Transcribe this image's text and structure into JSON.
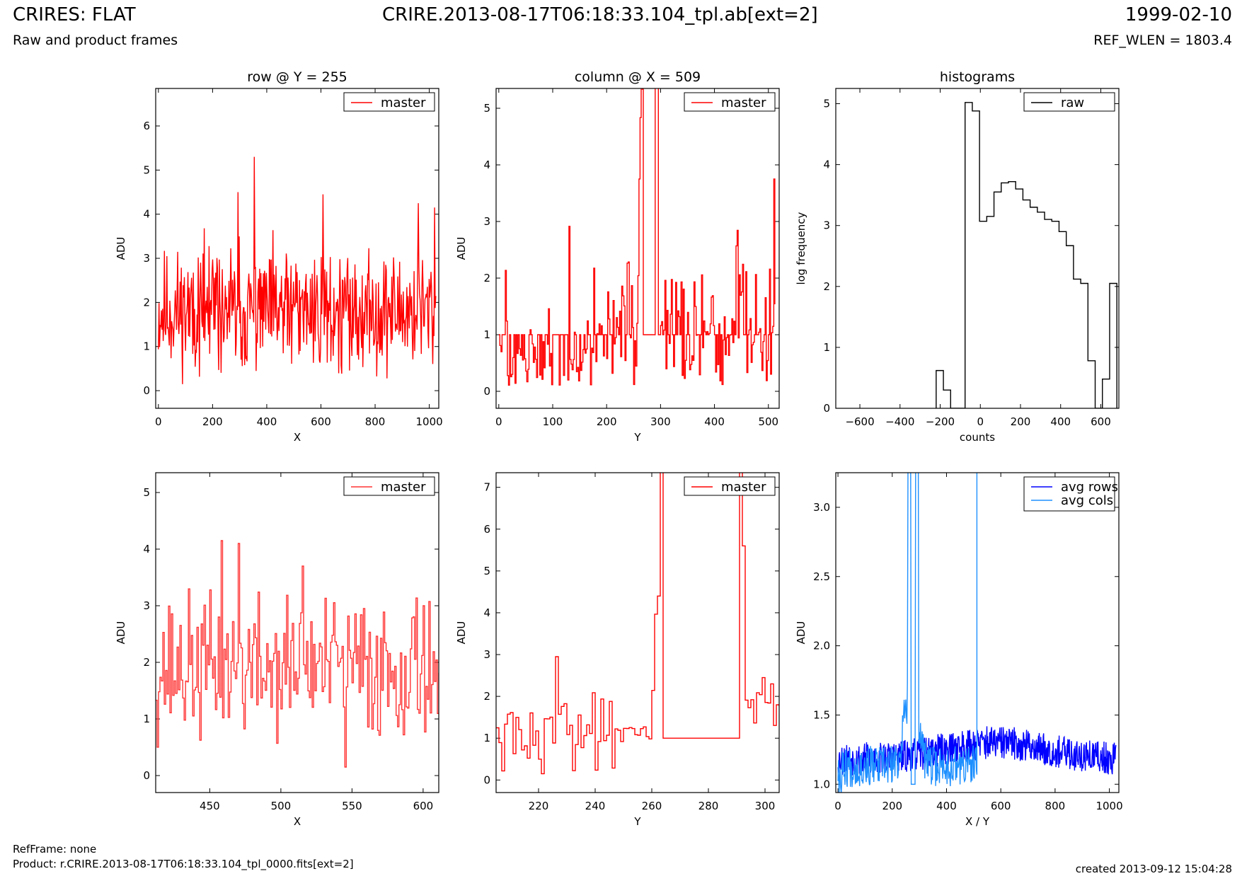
{
  "header": {
    "title_left": "CRIRES: FLAT",
    "subtitle_left": "Raw and product frames",
    "title_center": "CRIRE.2013-08-17T06:18:33.104_tpl.ab[ext=2]",
    "date_right": "1999-02-10",
    "refwlen": "REF_WLEN = 1803.4"
  },
  "footer": {
    "refframe": "RefFrame: none",
    "product": "Product: r.CRIRE.2013-08-17T06:18:33.104_tpl_0000.fits[ext=2]",
    "created": "created 2013-09-12 15:04:28"
  },
  "chart_data": [
    {
      "type": "line",
      "title": "row @ Y = 255",
      "xlabel": "X",
      "ylabel": "ADU",
      "xlim": [
        -10,
        1035
      ],
      "ylim": [
        -0.4,
        6.85
      ],
      "xticks": [
        0,
        200,
        400,
        600,
        800,
        1000
      ],
      "yticks": [
        0,
        1,
        2,
        3,
        4,
        5,
        6
      ],
      "legend": "top-right",
      "step": false,
      "series": [
        {
          "name": "master",
          "color": "#ff0000",
          "gen": {
            "kind": "noise",
            "x0": 0,
            "x1": 1024,
            "n": 460,
            "base": 1.8,
            "amp": 1.05,
            "min": 0.12,
            "seed": 11,
            "spikes": [
              [
                355,
                5.3
              ],
              [
                293,
                4.5
              ],
              [
                607,
                4.45
              ],
              [
                960,
                4.25
              ],
              [
                1020,
                4.15
              ]
            ]
          }
        }
      ]
    },
    {
      "type": "line",
      "title": "column @ X = 509",
      "xlabel": "Y",
      "ylabel": "ADU",
      "xlim": [
        -5,
        520
      ],
      "ylim": [
        -0.3,
        5.35
      ],
      "xticks": [
        0,
        100,
        200,
        300,
        400,
        500
      ],
      "yticks": [
        0,
        1,
        2,
        3,
        4,
        5
      ],
      "legend": "top-right",
      "step": true,
      "series": [
        {
          "name": "master",
          "color": "#ff0000",
          "gen": {
            "kind": "column",
            "seed": 23
          }
        }
      ]
    },
    {
      "type": "step",
      "title": "histograms",
      "xlabel": "counts",
      "ylabel": "log frequency",
      "xlim": [
        -720,
        690
      ],
      "ylim": [
        0,
        5.25
      ],
      "xticks": [
        -600,
        -400,
        -200,
        0,
        200,
        400,
        600
      ],
      "yticks": [
        0,
        1,
        2,
        3,
        4,
        5
      ],
      "legend": "top-right",
      "bin_width": 36,
      "series": [
        {
          "name": "raw",
          "color": "#000000",
          "edges": [
            -220,
            -184,
            -148,
            -112,
            -76,
            -40,
            -4,
            32,
            68,
            104,
            140,
            176,
            212,
            248,
            284,
            320,
            356,
            392,
            428,
            464,
            500,
            536,
            572,
            608,
            644,
            680
          ],
          "values": [
            0.62,
            0.3,
            0,
            0,
            5.02,
            4.88,
            3.07,
            3.15,
            3.55,
            3.7,
            3.72,
            3.6,
            3.42,
            3.3,
            3.22,
            3.1,
            3.07,
            2.9,
            2.67,
            2.12,
            2.05,
            0.78,
            0,
            0.48,
            2.05
          ]
        }
      ]
    },
    {
      "type": "line",
      "title": "",
      "xlabel": "X",
      "ylabel": "ADU",
      "xlim": [
        412,
        611
      ],
      "ylim": [
        -0.3,
        5.35
      ],
      "xticks": [
        450,
        500,
        550,
        600
      ],
      "yticks": [
        0,
        1,
        2,
        3,
        4,
        5
      ],
      "legend": "top-right",
      "step": true,
      "series": [
        {
          "name": "master",
          "color": "#ff3333",
          "gen": {
            "kind": "noise",
            "x0": 412,
            "x1": 611,
            "n": 199,
            "base": 1.9,
            "amp": 0.95,
            "min": 0.15,
            "seed": 37,
            "spikes": [
              [
                458,
                4.15
              ],
              [
                470,
                4.1
              ],
              [
                515,
                3.7
              ],
              [
                545,
                0.15
              ],
              [
                600,
                3.0
              ]
            ]
          }
        }
      ]
    },
    {
      "type": "line",
      "title": "",
      "xlabel": "Y",
      "ylabel": "ADU",
      "xlim": [
        205,
        305
      ],
      "ylim": [
        -0.3,
        7.35
      ],
      "xticks": [
        220,
        240,
        260,
        280,
        300
      ],
      "yticks": [
        0,
        1,
        2,
        3,
        4,
        5,
        6,
        7
      ],
      "legend": "top-right",
      "step": true,
      "series": [
        {
          "name": "master",
          "color": "#ff0000",
          "gen": {
            "kind": "colzoom",
            "seed": 41
          }
        }
      ]
    },
    {
      "type": "line",
      "title": "",
      "xlabel": "X / Y",
      "ylabel": "ADU",
      "xlim": [
        -8,
        1035
      ],
      "ylim": [
        0.94,
        3.25
      ],
      "xticks": [
        0,
        200,
        400,
        600,
        800,
        1000
      ],
      "yticks": [
        1.0,
        1.5,
        2.0,
        2.5,
        3.0
      ],
      "ytick_labels": [
        "1.0",
        "1.5",
        "2.0",
        "2.5",
        "3.0"
      ],
      "legend": "top-right",
      "step": false,
      "series": [
        {
          "name": "avg rows",
          "color": "#0000ff",
          "gen": {
            "kind": "avgrows",
            "x0": 0,
            "x1": 1024,
            "n": 700,
            "seed": 53
          }
        },
        {
          "name": "avg cols",
          "color": "#1e90ff",
          "gen": {
            "kind": "avgcols",
            "x0": 0,
            "x1": 512,
            "seed": 67
          }
        }
      ]
    }
  ]
}
